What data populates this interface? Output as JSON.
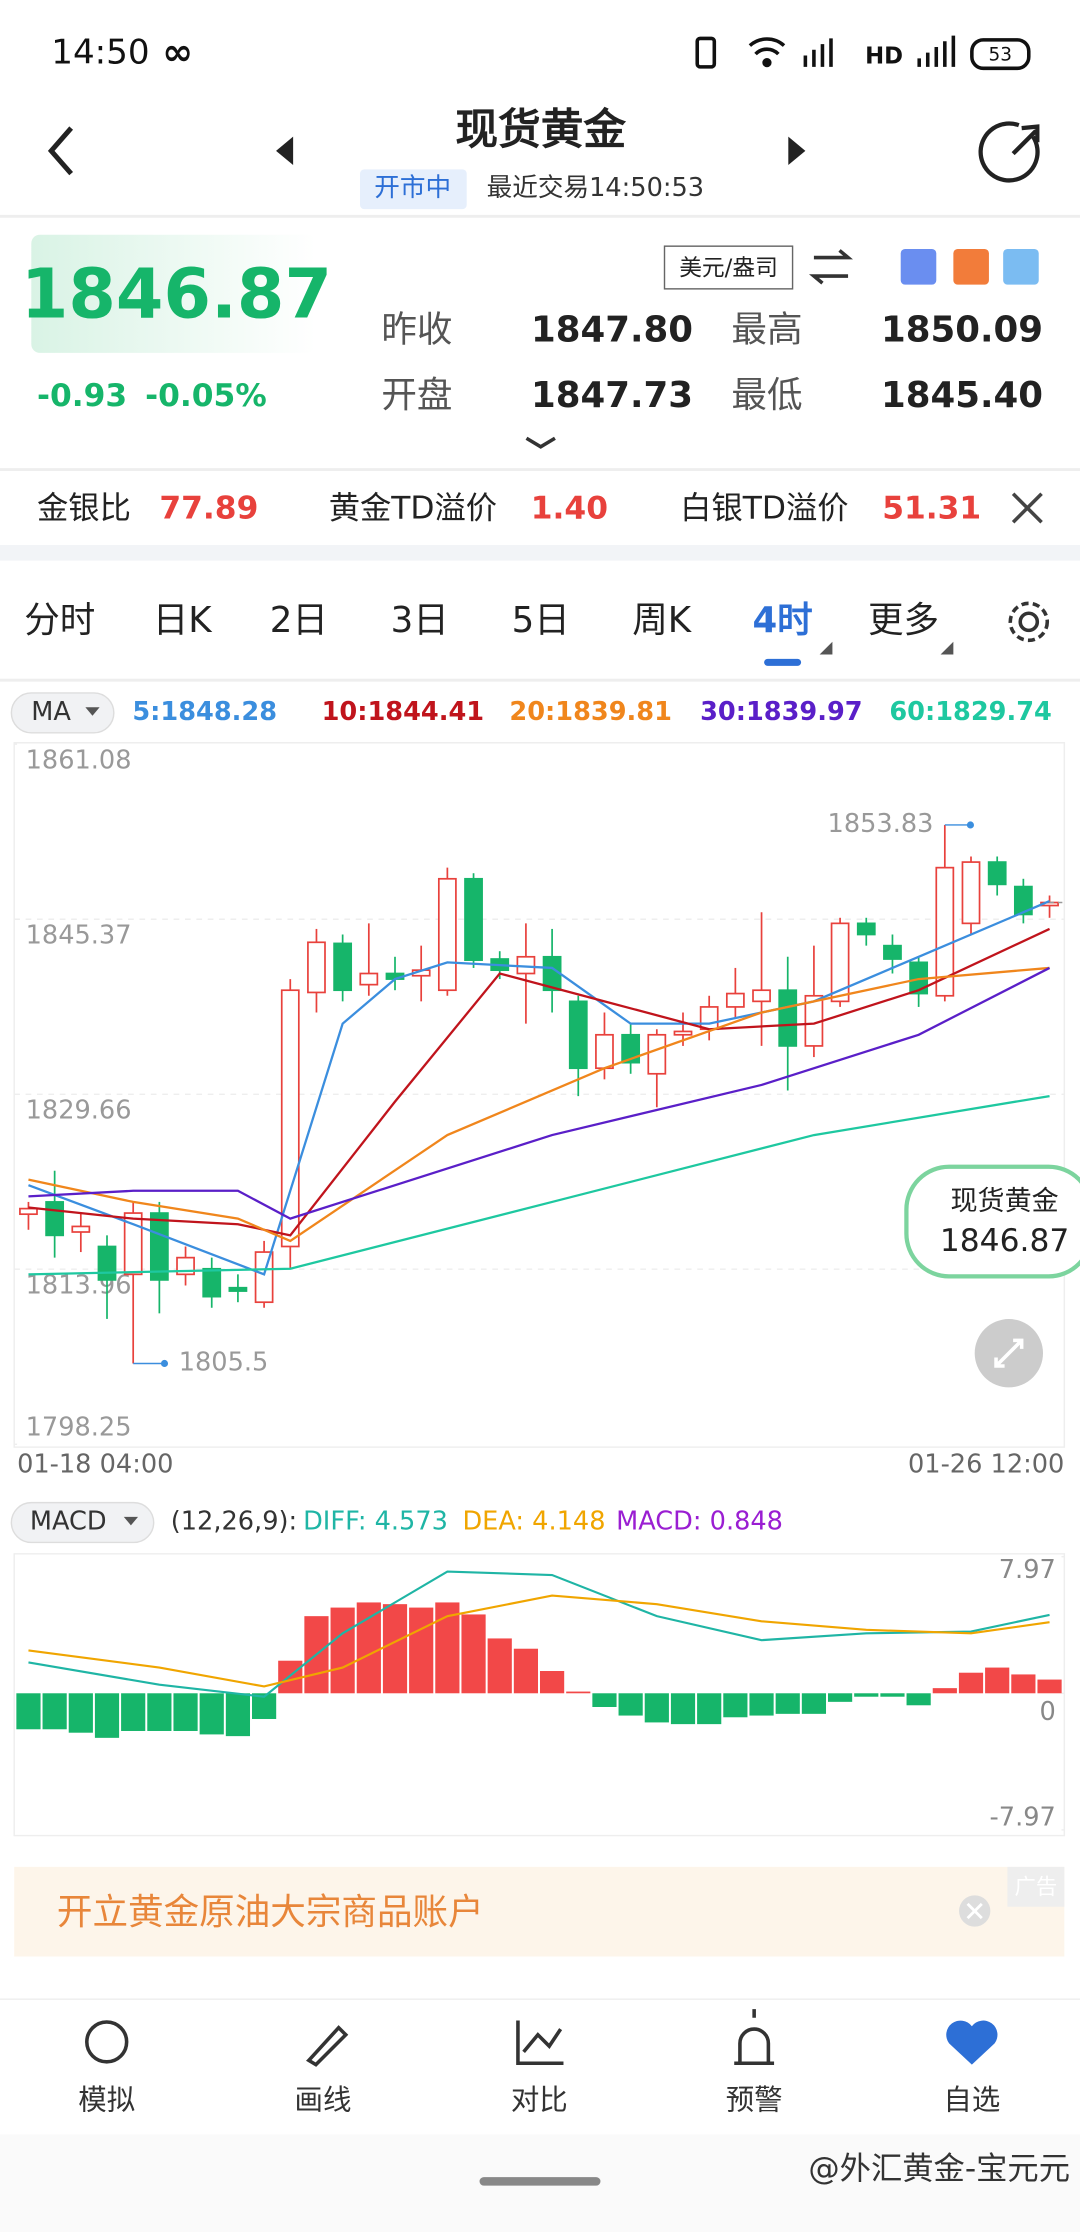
{
  "status_bar": {
    "time": "14:50",
    "battery": "53"
  },
  "header": {
    "title": "现货黄金",
    "status": "开市中",
    "last_trade": "最近交易14:50:53"
  },
  "quote": {
    "price": "1846.87",
    "change": "-0.93",
    "change_pct": "-0.05%",
    "unit": "美元/盎司",
    "fields": [
      {
        "label": "昨收",
        "value": "1847.80"
      },
      {
        "label": "最高",
        "value": "1850.09"
      },
      {
        "label": "开盘",
        "value": "1847.73"
      },
      {
        "label": "最低",
        "value": "1845.40"
      }
    ]
  },
  "ratio_bar": [
    {
      "label": "金银比",
      "value": "77.89"
    },
    {
      "label": "黄金TD溢价",
      "value": "1.40"
    },
    {
      "label": "白银TD溢价",
      "value": "51.31"
    }
  ],
  "tabs": {
    "items": [
      "分时",
      "日K",
      "2日",
      "3日",
      "5日",
      "周K",
      "4时",
      "更多"
    ],
    "active": 6
  },
  "chart_data": [
    {
      "type": "candlestick",
      "selector": "MA",
      "up_color": "#e8413c",
      "down_color": "#16b56a",
      "ylim": [
        1798.25,
        1861.08
      ],
      "yticks": [
        1861.08,
        1845.37,
        1829.66,
        1813.96,
        1798.25
      ],
      "x_labels": [
        "01-18 04:00",
        "01-26 12:00"
      ],
      "open": [
        1818.9,
        1820,
        1817.3,
        1816,
        1813.5,
        1819,
        1813.5,
        1814,
        1812.3,
        1811,
        1816,
        1838.8,
        1843.2,
        1839.5,
        1840.5,
        1840.3,
        1839,
        1849,
        1841.8,
        1840.5,
        1842,
        1838,
        1832,
        1835,
        1831.5,
        1835,
        1835.5,
        1837.5,
        1838,
        1839,
        1834,
        1838,
        1845,
        1843,
        1841.5,
        1838.5,
        1845,
        1850.5,
        1848.3,
        1846.6
      ],
      "close": [
        1819.4,
        1817,
        1817.8,
        1813,
        1819,
        1813,
        1815,
        1811.5,
        1812,
        1815.5,
        1839,
        1843.3,
        1839,
        1840.5,
        1840,
        1840.8,
        1849,
        1841.7,
        1840.8,
        1842,
        1839,
        1832,
        1835,
        1832.5,
        1835,
        1835.3,
        1837.5,
        1838.7,
        1839,
        1834,
        1838.5,
        1845,
        1844,
        1841.8,
        1838.7,
        1850,
        1850.5,
        1848.5,
        1845.8,
        1846.87
      ],
      "high": [
        1820,
        1822.8,
        1819,
        1817,
        1820,
        1820,
        1816,
        1815,
        1813.5,
        1816.5,
        1840,
        1844.5,
        1844,
        1845,
        1842,
        1843,
        1850,
        1849.5,
        1842.5,
        1845,
        1844.5,
        1838.5,
        1837,
        1836,
        1835.5,
        1837,
        1838.5,
        1841,
        1846,
        1842,
        1843,
        1845.5,
        1845.5,
        1844,
        1842,
        1853.83,
        1851,
        1851,
        1849,
        1847.5
      ],
      "low": [
        1817.5,
        1815,
        1815.5,
        1809.5,
        1805.5,
        1810,
        1812.5,
        1810.5,
        1811,
        1810.5,
        1814,
        1837,
        1838,
        1838.5,
        1839,
        1838,
        1838.5,
        1841,
        1840,
        1836,
        1837,
        1829.5,
        1831,
        1831.5,
        1828.5,
        1834,
        1834.5,
        1836.5,
        1834,
        1830,
        1833,
        1837.5,
        1843,
        1840.5,
        1837.5,
        1838,
        1844,
        1847.5,
        1845,
        1845.5
      ],
      "max_index": 35,
      "min_index": 4,
      "last_index": 39,
      "series": [
        {
          "label": "5:1848.28",
          "color": "#3b8ede",
          "x": [
            0,
            4,
            9,
            12,
            14,
            16,
            20,
            23,
            26,
            30,
            34,
            39
          ],
          "values": [
            1821.5,
            1818,
            1813.5,
            1836,
            1840,
            1841.5,
            1841,
            1836,
            1836,
            1838,
            1842,
            1847
          ]
        },
        {
          "label": "10:1844.41",
          "color": "#c0141c",
          "x": [
            0,
            4,
            8,
            10,
            14,
            18,
            22,
            26,
            30,
            34,
            39
          ],
          "values": [
            1819.5,
            1818.5,
            1818,
            1817,
            1829,
            1840.5,
            1838,
            1835.5,
            1836,
            1839,
            1844.5
          ]
        },
        {
          "label": "20:1839.81",
          "color": "#f0861c",
          "x": [
            0,
            4,
            8,
            10,
            16,
            22,
            28,
            34,
            39
          ],
          "values": [
            1822,
            1820,
            1818.5,
            1816.5,
            1826,
            1832,
            1837,
            1840,
            1841
          ]
        },
        {
          "label": "30:1839.97",
          "color": "#5a1fc8",
          "x": [
            0,
            4,
            8,
            10,
            20,
            28,
            34,
            39
          ],
          "values": [
            1820.5,
            1821,
            1821,
            1818.5,
            1826,
            1830.5,
            1835,
            1841
          ]
        },
        {
          "label": "60:1829.74",
          "color": "#1ec8a0",
          "x": [
            0,
            10,
            20,
            30,
            39
          ],
          "values": [
            1813.5,
            1814,
            1820,
            1826,
            1829.5
          ]
        }
      ]
    },
    {
      "type": "macd",
      "title": "MACD",
      "params": "(12,26,9):",
      "up_color": "#f24848",
      "down_color": "#16b56a",
      "ylim": [
        -7.97,
        7.97
      ],
      "yticks": [
        7.97,
        0,
        -7.97
      ],
      "values": [
        -2.1,
        -2.1,
        -2.3,
        -2.6,
        -2.2,
        -2.2,
        -2.2,
        -2.4,
        -2.5,
        -1.5,
        1.9,
        4.5,
        5.0,
        5.3,
        5.2,
        5.0,
        5.3,
        4.6,
        3.2,
        2.6,
        1.3,
        0.1,
        -0.8,
        -1.3,
        -1.7,
        -1.8,
        -1.8,
        -1.4,
        -1.3,
        -1.2,
        -1.2,
        -0.5,
        -0.2,
        -0.2,
        -0.7,
        0.3,
        1.2,
        1.5,
        1.1,
        0.8
      ],
      "series": [
        {
          "label": "DIFF: 4.573",
          "color": "#1fb5a5",
          "x": [
            0,
            5,
            9,
            12,
            16,
            20,
            24,
            28,
            32,
            36,
            39
          ],
          "values": [
            1.8,
            0.5,
            -0.2,
            3.5,
            7.1,
            6.9,
            4.5,
            3.1,
            3.5,
            3.6,
            4.573
          ]
        },
        {
          "label": "DEA: 4.148",
          "color": "#f0a500",
          "x": [
            0,
            5,
            9,
            12,
            16,
            20,
            24,
            28,
            32,
            36,
            39
          ],
          "values": [
            2.5,
            1.5,
            0.4,
            1.5,
            4.5,
            5.7,
            5.2,
            4.2,
            3.7,
            3.5,
            4.148
          ]
        },
        {
          "label": "MACD: 0.848",
          "color": "#9a1ed2"
        }
      ]
    }
  ],
  "ad": {
    "text": "开立黄金原油大宗商品账户",
    "tag": "广告"
  },
  "nav": [
    "模拟",
    "画线",
    "对比",
    "预警",
    "自选"
  ],
  "watermark": "@外汇黄金-宝元元"
}
